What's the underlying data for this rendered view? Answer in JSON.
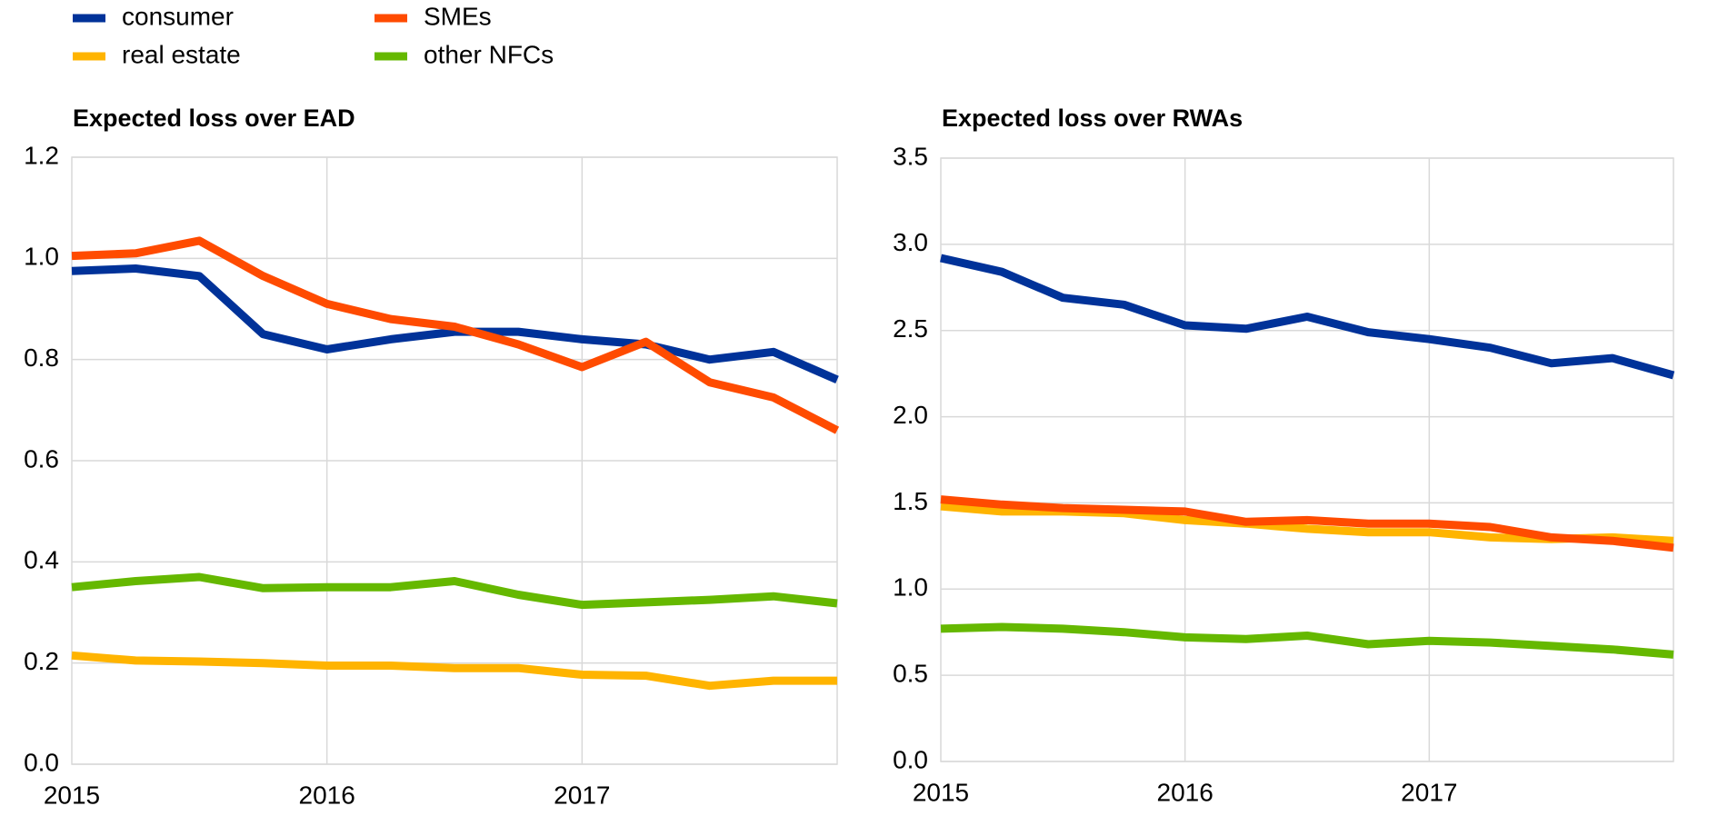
{
  "chart_data": [
    {
      "type": "line",
      "title": "Expected loss over EAD",
      "categories": [
        "2015",
        null,
        null,
        null,
        "2016",
        null,
        null,
        null,
        "2017",
        null,
        null,
        null,
        null
      ],
      "ylim": [
        0,
        1.2
      ],
      "yticks": [
        {
          "value": 0,
          "label": "0.0"
        },
        0.2,
        0.4,
        0.6,
        0.8,
        {
          "value": 1,
          "label": "1.0"
        },
        1.2
      ],
      "grid": true,
      "series": [
        {
          "name": "consumer",
          "color": "#003299",
          "values": [
            0.975,
            0.98,
            0.965,
            0.85,
            0.82,
            0.84,
            0.855,
            0.855,
            0.84,
            0.83,
            0.8,
            0.815,
            0.76
          ]
        },
        {
          "name": "real estate",
          "color": "#ffb400",
          "values": [
            0.215,
            0.205,
            0.203,
            0.2,
            0.195,
            0.195,
            0.19,
            0.19,
            0.177,
            0.175,
            0.155,
            0.165,
            0.165
          ]
        },
        {
          "name": "SMEs",
          "color": "#ff4b00",
          "values": [
            1.005,
            1.01,
            1.035,
            0.965,
            0.91,
            0.88,
            0.865,
            0.83,
            0.785,
            0.835,
            0.755,
            0.725,
            0.66
          ]
        },
        {
          "name": "other NFCs",
          "color": "#65b800",
          "values": [
            0.35,
            0.362,
            0.37,
            0.348,
            0.35,
            0.35,
            0.362,
            0.335,
            0.315,
            0.32,
            0.325,
            0.332,
            0.318
          ]
        }
      ]
    },
    {
      "type": "line",
      "title": "Expected loss over RWAs",
      "categories": [
        "2015",
        null,
        null,
        null,
        "2016",
        null,
        null,
        null,
        "2017",
        null,
        null,
        null,
        null
      ],
      "ylim": [
        0,
        3.5
      ],
      "yticks": [
        {
          "value": 0,
          "label": "0.0"
        },
        0.5,
        {
          "value": 1,
          "label": "1.0"
        },
        1.5,
        {
          "value": 2,
          "label": "2.0"
        },
        2.5,
        {
          "value": 3,
          "label": "3.0"
        },
        3.5
      ],
      "grid": true,
      "series": [
        {
          "name": "consumer",
          "color": "#003299",
          "values": [
            2.92,
            2.84,
            2.69,
            2.65,
            2.53,
            2.51,
            2.58,
            2.49,
            2.45,
            2.4,
            2.31,
            2.34,
            2.24
          ]
        },
        {
          "name": "real estate",
          "color": "#ffb400",
          "values": [
            1.48,
            1.45,
            1.45,
            1.44,
            1.4,
            1.38,
            1.35,
            1.33,
            1.33,
            1.3,
            1.29,
            1.3,
            1.28
          ]
        },
        {
          "name": "SMEs",
          "color": "#ff4b00",
          "values": [
            1.52,
            1.49,
            1.47,
            1.46,
            1.45,
            1.39,
            1.4,
            1.38,
            1.38,
            1.36,
            1.3,
            1.28,
            1.24
          ]
        },
        {
          "name": "other NFCs",
          "color": "#65b800",
          "values": [
            0.77,
            0.78,
            0.77,
            0.75,
            0.72,
            0.71,
            0.73,
            0.68,
            0.7,
            0.69,
            0.67,
            0.65,
            0.62
          ]
        }
      ]
    }
  ]
}
